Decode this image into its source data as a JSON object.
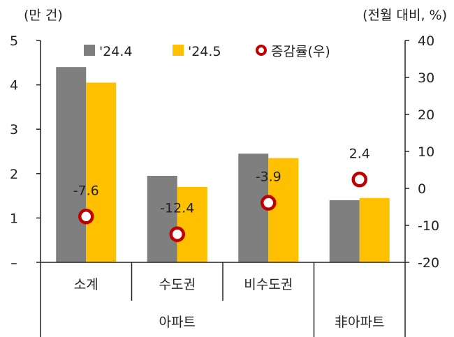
{
  "chart_data": {
    "type": "bar",
    "left_unit": "(만 건)",
    "right_unit": "(전월 대비, %)",
    "categories": [
      "소계",
      "수도권",
      "비수도권",
      "아파트"
    ],
    "groups": [
      {
        "label": "아파트",
        "span": [
          0,
          2
        ]
      },
      {
        "label": "非아파트",
        "span": [
          3,
          3
        ]
      }
    ],
    "category_labels": [
      "소계",
      "수도권",
      "비수도권",
      ""
    ],
    "series": [
      {
        "name": "'24.4",
        "axis": "left",
        "color": "#7f7f7f",
        "values": [
          4.4,
          1.95,
          2.45,
          1.4
        ]
      },
      {
        "name": "'24.5",
        "axis": "left",
        "color": "#ffc000",
        "values": [
          4.05,
          1.7,
          2.35,
          1.45
        ]
      },
      {
        "name": "증감률(우)",
        "axis": "right",
        "type": "scatter",
        "color": "#c00000",
        "values": [
          -7.6,
          -12.4,
          -3.9,
          2.4
        ],
        "labels": [
          "-7.6",
          "-12.4",
          "-3.9",
          "2.4"
        ]
      }
    ],
    "left_axis": {
      "min": 0,
      "max": 5,
      "ticks": [
        "–",
        "1",
        "2",
        "3",
        "4",
        "5"
      ]
    },
    "right_axis": {
      "min": -20,
      "max": 40,
      "ticks": [
        "-20",
        "-10",
        "0",
        "10",
        "20",
        "30",
        "40"
      ]
    },
    "legend": "top",
    "grid": false
  }
}
